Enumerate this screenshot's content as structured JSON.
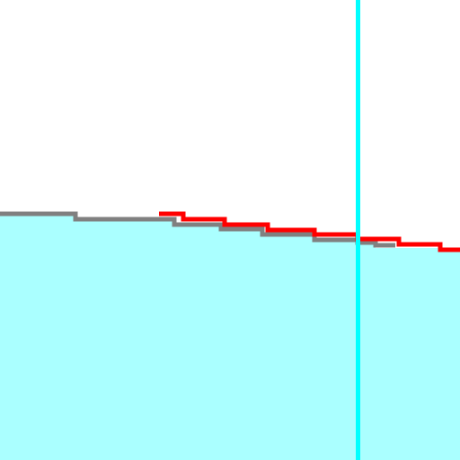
{
  "canvas": {
    "background_color": "#ffffff"
  },
  "surface": {
    "fill_color": "#aaffff",
    "outline_color": "#808080"
  },
  "overlay_line": {
    "color": "#ff0000"
  },
  "cursor_line": {
    "color": "#00ffff"
  }
}
